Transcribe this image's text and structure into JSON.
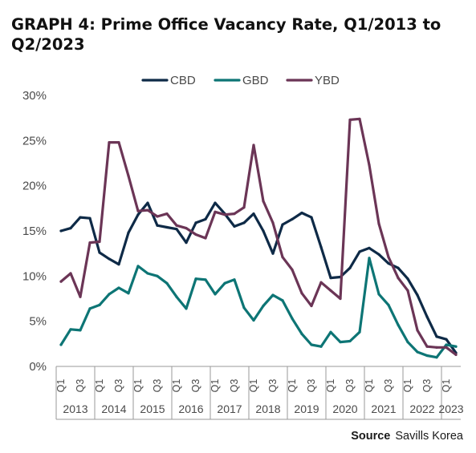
{
  "title": "GRAPH 4: Prime Office Vacancy Rate, Q1/2013 to Q2/2023",
  "source": {
    "label": "Source",
    "text": "Savills Korea"
  },
  "colors": {
    "CBD": "#0e2a47",
    "GBD": "#0d7575",
    "YBD": "#6b3556",
    "axis": "#9a9a9a",
    "text": "#4a4a4a"
  },
  "chart_data": {
    "type": "line",
    "title": "GRAPH 4: Prime Office Vacancy Rate, Q1/2013 to Q2/2023",
    "xlabel": "",
    "ylabel": "",
    "ylim": [
      0,
      30
    ],
    "y_ticks": [
      "0%",
      "5%",
      "10%",
      "15%",
      "20%",
      "25%",
      "30%"
    ],
    "grid": false,
    "legend_position": "top-center",
    "x": [
      "Q1/2013",
      "Q2/2013",
      "Q3/2013",
      "Q4/2013",
      "Q1/2014",
      "Q2/2014",
      "Q3/2014",
      "Q4/2014",
      "Q1/2015",
      "Q2/2015",
      "Q3/2015",
      "Q4/2015",
      "Q1/2016",
      "Q2/2016",
      "Q3/2016",
      "Q4/2016",
      "Q1/2017",
      "Q2/2017",
      "Q3/2017",
      "Q4/2017",
      "Q1/2018",
      "Q2/2018",
      "Q3/2018",
      "Q4/2018",
      "Q1/2019",
      "Q2/2019",
      "Q3/2019",
      "Q4/2019",
      "Q1/2020",
      "Q2/2020",
      "Q3/2020",
      "Q4/2020",
      "Q1/2021",
      "Q2/2021",
      "Q3/2021",
      "Q4/2021",
      "Q1/2022",
      "Q2/2022",
      "Q3/2022",
      "Q4/2022",
      "Q1/2023",
      "Q2/2023"
    ],
    "quarter_tick_labels": [
      "Q1",
      "Q3"
    ],
    "years": [
      "2013",
      "2014",
      "2015",
      "2016",
      "2017",
      "2018",
      "2019",
      "2020",
      "2021",
      "2022",
      "2023"
    ],
    "series": [
      {
        "name": "CBD",
        "values": [
          15.0,
          15.3,
          16.5,
          16.4,
          12.6,
          11.9,
          11.3,
          14.8,
          16.8,
          18.1,
          15.6,
          15.4,
          15.2,
          13.7,
          15.9,
          16.3,
          18.1,
          16.9,
          15.5,
          15.9,
          16.9,
          15.0,
          12.5,
          15.7,
          16.3,
          17.0,
          16.5,
          13.2,
          9.8,
          9.9,
          10.9,
          12.7,
          13.1,
          12.4,
          11.4,
          10.9,
          9.7,
          7.9,
          5.5,
          3.3,
          3.0,
          1.5
        ]
      },
      {
        "name": "GBD",
        "values": [
          2.4,
          4.1,
          4.0,
          6.4,
          6.8,
          8.0,
          8.7,
          8.1,
          11.1,
          10.3,
          10.0,
          9.2,
          7.7,
          6.4,
          9.7,
          9.6,
          8.0,
          9.2,
          9.6,
          6.5,
          5.1,
          6.7,
          7.9,
          7.3,
          5.3,
          3.6,
          2.4,
          2.2,
          3.8,
          2.7,
          2.8,
          3.8,
          12.0,
          8.0,
          6.8,
          4.6,
          2.7,
          1.6,
          1.2,
          1.0,
          2.4,
          2.2
        ]
      },
      {
        "name": "YBD",
        "values": [
          9.4,
          10.3,
          7.7,
          13.7,
          13.8,
          24.8,
          24.8,
          21.1,
          17.2,
          17.3,
          16.6,
          16.9,
          15.6,
          15.3,
          14.6,
          14.2,
          17.1,
          16.8,
          16.9,
          17.6,
          24.5,
          18.3,
          15.9,
          12.1,
          10.7,
          8.1,
          6.7,
          9.3,
          8.4,
          7.5,
          27.3,
          27.4,
          22.3,
          15.8,
          12.1,
          9.8,
          8.4,
          4.0,
          2.2,
          2.1,
          2.1,
          1.3
        ]
      }
    ]
  }
}
